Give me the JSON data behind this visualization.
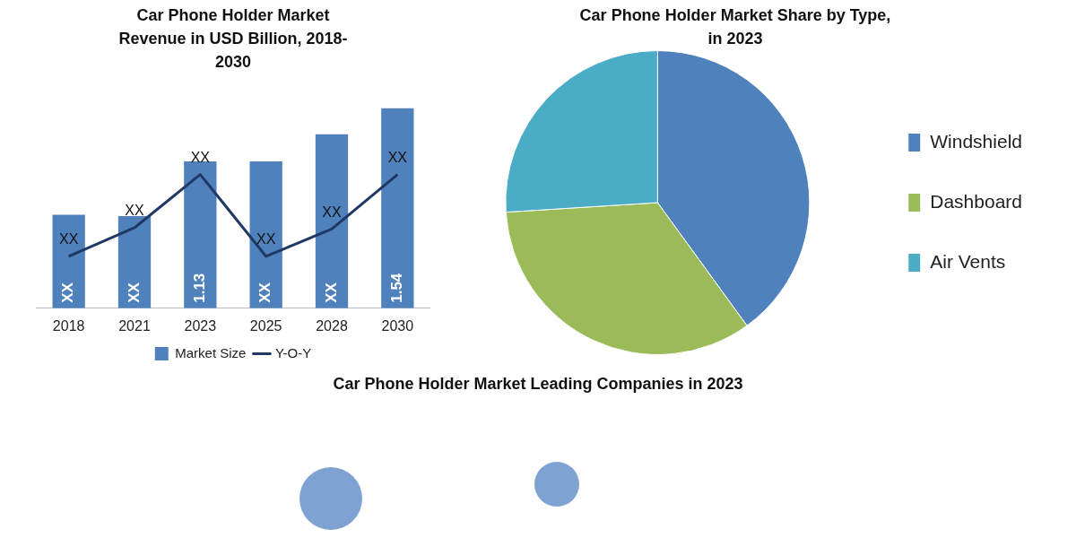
{
  "chart_data": [
    {
      "type": "bar",
      "title": "Car Phone Holder Market Revenue in USD Billion, 2018-2030",
      "categories": [
        "2018",
        "2021",
        "2023",
        "2025",
        "2028",
        "2030"
      ],
      "legend": "bottom",
      "grid": false,
      "series": [
        {
          "name": "Market Size",
          "type": "bar",
          "color": "#4f81bd",
          "values": [
            0.72,
            0.71,
            1.13,
            1.13,
            1.34,
            1.54
          ],
          "value_labels": [
            "XX",
            "XX",
            "1.13",
            "XX",
            "XX",
            "1.54"
          ]
        },
        {
          "name": "Y-O-Y",
          "type": "line",
          "color": "#1f3864",
          "marker": "none",
          "values": [
            0.4,
            0.62,
            1.03,
            0.4,
            0.61,
            1.03
          ],
          "value_labels": [
            "XX",
            "XX",
            "XX",
            "XX",
            "XX",
            "XX"
          ]
        }
      ]
    },
    {
      "type": "pie",
      "title": "Car Phone Holder Market Share by Type, in 2023",
      "categories": [
        "Windshield",
        "Dashboard",
        "Air Vents"
      ],
      "values": [
        40,
        34,
        26
      ],
      "colors": [
        "#4f81bd",
        "#9bbb59",
        "#4bacc6"
      ],
      "legend": "right"
    },
    {
      "type": "other",
      "title": "Car Phone Holder Market Leading Companies in 2023"
    }
  ]
}
